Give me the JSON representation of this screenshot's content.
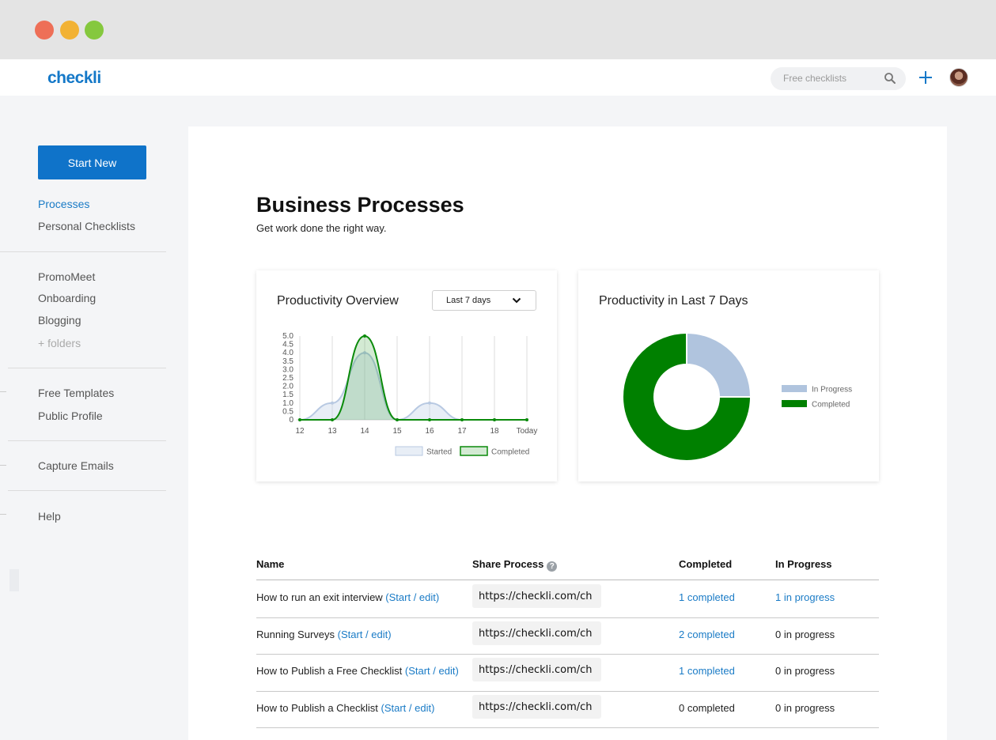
{
  "app": {
    "logo": "checkli"
  },
  "header": {
    "search_placeholder": "Free checklists",
    "search_icon": "search-icon",
    "add_icon": "plus-icon"
  },
  "sidebar": {
    "start_new": "Start New",
    "primary": [
      {
        "label": "Processes",
        "active": true
      },
      {
        "label": "Personal Checklists"
      }
    ],
    "folders": [
      {
        "label": "PromoMeet"
      },
      {
        "label": "Onboarding"
      },
      {
        "label": "Blogging"
      },
      {
        "label": "+ folders"
      }
    ],
    "links": [
      {
        "label": "Free Templates"
      },
      {
        "label": "Public Profile"
      }
    ],
    "extra": [
      {
        "label": "Capture Emails"
      }
    ],
    "help": {
      "label": "Help"
    }
  },
  "page": {
    "title": "Business Processes",
    "subtitle": "Get work done the right way."
  },
  "cards": {
    "overview": {
      "title": "Productivity Overview",
      "range": "Last 7 days"
    },
    "last7": {
      "title": "Productivity in Last 7 Days"
    }
  },
  "chart_data": [
    {
      "type": "area",
      "title": "Productivity Overview",
      "categories": [
        "12",
        "13",
        "14",
        "15",
        "16",
        "17",
        "18",
        "Today"
      ],
      "ylim": [
        0,
        5
      ],
      "yticks": [
        "0",
        "0.5",
        "1.0",
        "1.5",
        "2.0",
        "2.5",
        "3.0",
        "3.5",
        "4.0",
        "4.5",
        "5.0"
      ],
      "series": [
        {
          "name": "Started",
          "values": [
            0,
            1,
            4,
            0,
            1,
            0,
            0,
            0
          ],
          "color": "#b8c9e2"
        },
        {
          "name": "Completed",
          "values": [
            0,
            0,
            5,
            0,
            0,
            0,
            0,
            0
          ],
          "color": "#0a8a0a"
        }
      ],
      "legend": "bottom-right",
      "grid": true
    },
    {
      "type": "pie",
      "title": "Productivity in Last 7 Days",
      "labels": [
        "In Progress",
        "Completed"
      ],
      "values": [
        1,
        3
      ],
      "colors": [
        "#b0c4de",
        "#008000"
      ],
      "legend": "right"
    }
  ],
  "table": {
    "headers": {
      "name": "Name",
      "share": "Share Process",
      "completed": "Completed",
      "in_progress": "In Progress"
    },
    "action_label": "(Start / edit)",
    "rows": [
      {
        "name": "How to run an exit interview",
        "share": "https://checkli.com/ch",
        "completed": "1 completed",
        "completed_link": true,
        "in_progress": "1 in progress",
        "in_progress_link": true
      },
      {
        "name": "Running Surveys",
        "share": "https://checkli.com/ch",
        "completed": "2 completed",
        "completed_link": true,
        "in_progress": "0 in progress",
        "in_progress_link": false
      },
      {
        "name": "How to Publish a Free Checklist",
        "share": "https://checkli.com/ch",
        "completed": "1 completed",
        "completed_link": true,
        "in_progress": "0 in progress",
        "in_progress_link": false
      },
      {
        "name": "How to Publish a Checklist",
        "share": "https://checkli.com/ch",
        "completed": "0 completed",
        "completed_link": false,
        "in_progress": "0 in progress",
        "in_progress_link": false
      }
    ]
  },
  "colors": {
    "brand": "#1478c8",
    "primary_button": "#0f73c9",
    "link": "#1a7bc6"
  }
}
